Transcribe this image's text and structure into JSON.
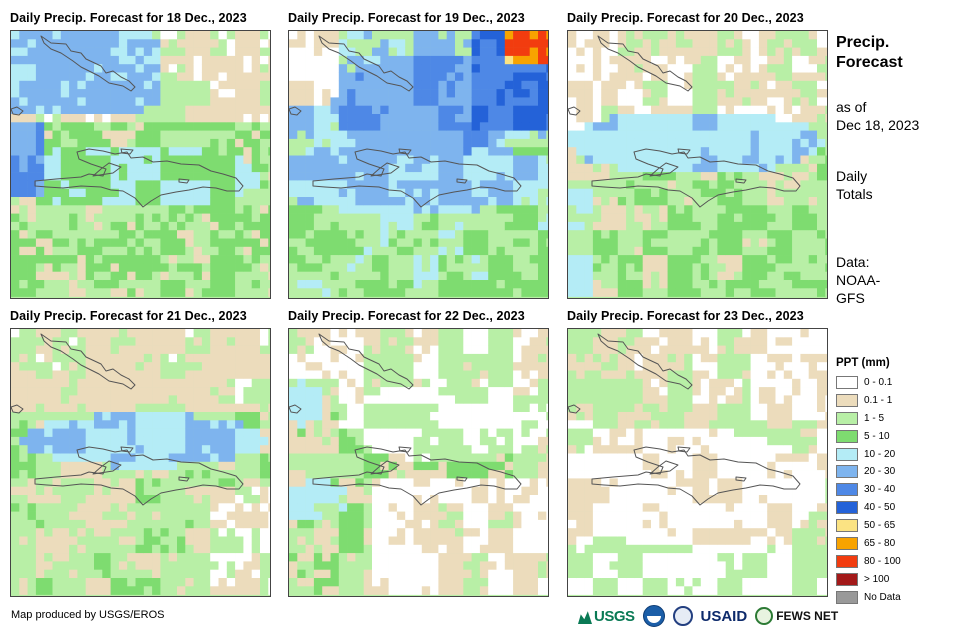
{
  "panels": [
    {
      "title": "Daily Precip. Forecast for 18 Dec., 2023"
    },
    {
      "title": "Daily Precip. Forecast for 19 Dec., 2023"
    },
    {
      "title": "Daily Precip. Forecast for 20 Dec., 2023"
    },
    {
      "title": "Daily Precip. Forecast for 21 Dec., 2023"
    },
    {
      "title": "Daily Precip. Forecast for 22 Dec., 2023"
    },
    {
      "title": "Daily Precip. Forecast for 23 Dec., 2023"
    }
  ],
  "side": {
    "title_line1": "Precip.",
    "title_line2": "Forecast",
    "asof_line1": "as of",
    "asof_line2": "Dec 18, 2023",
    "daily_line1": "Daily",
    "daily_line2": "Totals",
    "data_line1": "Data:",
    "data_line2": "NOAA-",
    "data_line3": "GFS"
  },
  "legend": {
    "title": "PPT (mm)",
    "items": [
      {
        "label": "0 - 0.1",
        "color": "#ffffff"
      },
      {
        "label": "0.1 - 1",
        "color": "#ecdcbc"
      },
      {
        "label": "1 - 5",
        "color": "#b8efa6"
      },
      {
        "label": "5 - 10",
        "color": "#7edc70"
      },
      {
        "label": "10 - 20",
        "color": "#b4ecf6"
      },
      {
        "label": "20 - 30",
        "color": "#7eb4ee"
      },
      {
        "label": "30 - 40",
        "color": "#4e88e6"
      },
      {
        "label": "40 - 50",
        "color": "#2462d8"
      },
      {
        "label": "50 - 65",
        "color": "#fbe383"
      },
      {
        "label": "65 - 80",
        "color": "#f8a300"
      },
      {
        "label": "80 - 100",
        "color": "#f23c0f"
      },
      {
        "label": "> 100",
        "color": "#a31919"
      },
      {
        "label": "No Data",
        "color": "#999999"
      }
    ]
  },
  "credit": "Map produced by USGS/EROS",
  "logos": {
    "usgs": "USGS",
    "usaid": "USAID",
    "fews": "FEWS NET"
  }
}
